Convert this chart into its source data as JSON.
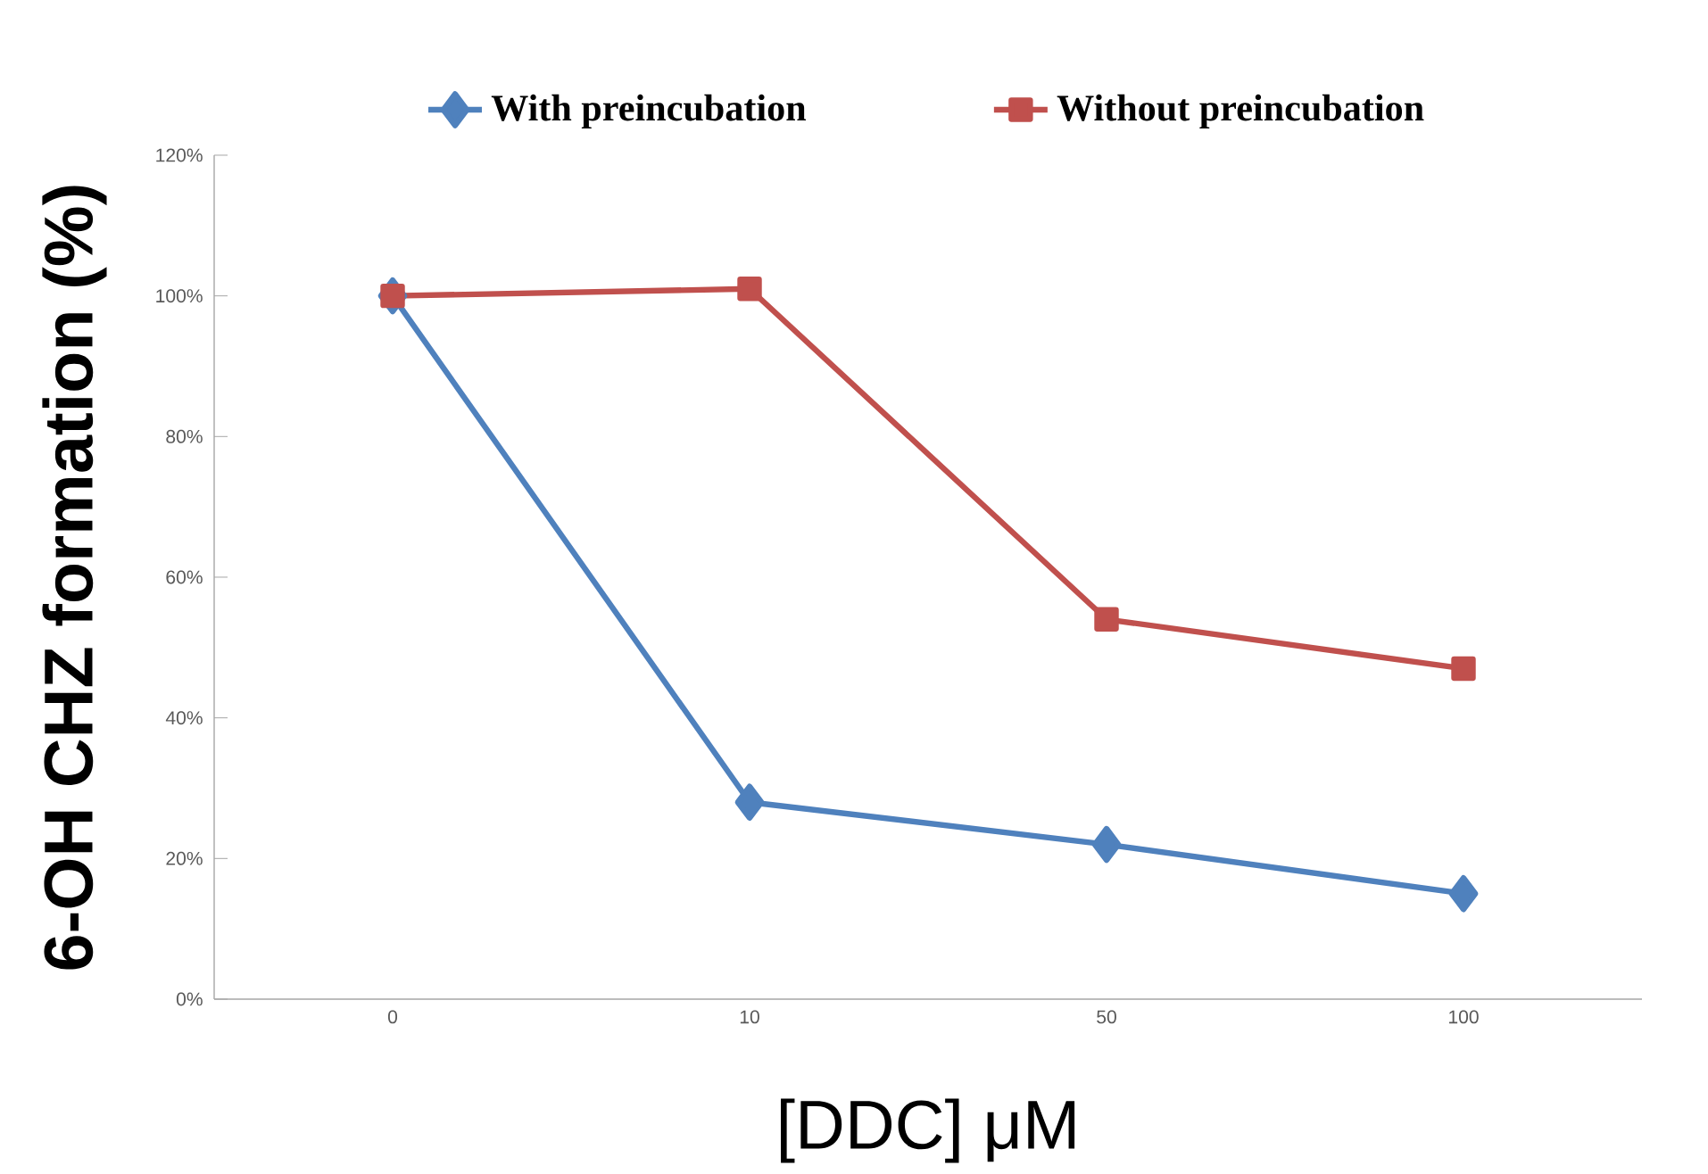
{
  "chart_data": {
    "type": "line",
    "categories": [
      "0",
      "10",
      "50",
      "100"
    ],
    "series": [
      {
        "name": "With preincubation",
        "color": "#4f81bd",
        "marker": "diamond",
        "values": [
          100,
          28,
          22,
          15
        ]
      },
      {
        "name": "Without preincubation",
        "color": "#c0504d",
        "marker": "square",
        "values": [
          100,
          101,
          54,
          47
        ]
      }
    ],
    "xlabel": "[DDC] μM",
    "ylabel": "6-OH CHZ formation (%)",
    "ylim": [
      0,
      120
    ],
    "yticks": [
      {
        "value": 0,
        "label": "0%"
      },
      {
        "value": 20,
        "label": "20%"
      },
      {
        "value": 40,
        "label": "40%"
      },
      {
        "value": 60,
        "label": "60%"
      },
      {
        "value": 80,
        "label": "80%"
      },
      {
        "value": 100,
        "label": "100%"
      },
      {
        "value": 120,
        "label": "120%"
      }
    ],
    "legend": "top",
    "grid": false,
    "line_style": "solid"
  }
}
